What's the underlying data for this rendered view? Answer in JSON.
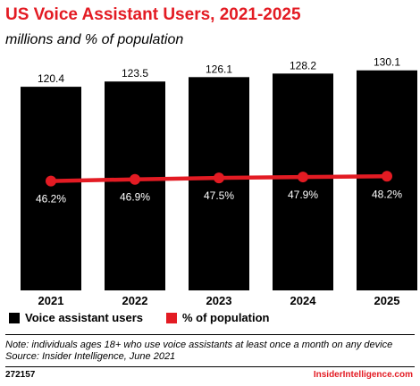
{
  "title": "US Voice Assistant Users, 2021-2025",
  "subtitle": "millions and % of population",
  "colors": {
    "bar": "#000000",
    "line": "#e31b23",
    "label_on_bar": "#ffffff",
    "title": "#e31b23"
  },
  "legend": [
    {
      "label": "Voice assistant users",
      "color": "#000000"
    },
    {
      "label": "% of population",
      "color": "#e31b23"
    }
  ],
  "note_line1": "Note: individuals ages 18+ who use voice assistants at least once a month on any device",
  "note_line2": "Source: Insider Intelligence, June 2021",
  "footer_id": "272157",
  "footer_brand": "InsiderIntelligence.com",
  "chart_data": {
    "type": "bar",
    "categories": [
      "2021",
      "2022",
      "2023",
      "2024",
      "2025"
    ],
    "series": [
      {
        "name": "Voice assistant users",
        "type": "bar",
        "values": [
          120.4,
          123.5,
          126.1,
          128.2,
          130.1
        ],
        "labels": [
          "120.4",
          "123.5",
          "126.1",
          "128.2",
          "130.1"
        ]
      },
      {
        "name": "% of population",
        "type": "line",
        "values": [
          46.2,
          46.9,
          47.5,
          47.9,
          48.2
        ],
        "labels": [
          "46.2%",
          "46.9%",
          "47.5%",
          "47.9%",
          "48.2%"
        ]
      }
    ],
    "title": "US Voice Assistant Users, 2021-2025",
    "subtitle": "millions and % of population",
    "ylim_bars": [
      0,
      140
    ],
    "ylim_line": [
      0,
      100
    ],
    "grid": false,
    "legend": "bottom-left"
  }
}
